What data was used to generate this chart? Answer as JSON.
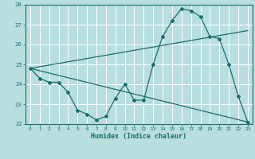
{
  "xlabel": "Humidex (Indice chaleur)",
  "xlim": [
    -0.5,
    23.5
  ],
  "ylim": [
    22,
    28
  ],
  "yticks": [
    22,
    23,
    24,
    25,
    26,
    27,
    28
  ],
  "xticks": [
    0,
    1,
    2,
    3,
    4,
    5,
    6,
    7,
    8,
    9,
    10,
    11,
    12,
    13,
    14,
    15,
    16,
    17,
    18,
    19,
    20,
    21,
    22,
    23
  ],
  "bg_color": "#b8dede",
  "line_color": "#1a6e6a",
  "grid_color": "#ffffff",
  "line1_x": [
    0,
    1,
    2,
    3,
    4,
    5,
    6,
    7,
    8,
    9,
    10,
    11,
    12,
    13,
    14,
    15,
    16,
    17,
    18,
    19,
    20,
    21,
    22,
    23
  ],
  "line1_y": [
    24.8,
    24.3,
    24.1,
    24.1,
    23.6,
    22.7,
    22.5,
    22.2,
    22.4,
    23.3,
    24.0,
    23.2,
    23.2,
    25.0,
    26.4,
    27.2,
    27.8,
    27.7,
    27.4,
    26.4,
    26.3,
    25.0,
    23.4,
    22.1
  ],
  "line2_x": [
    0,
    23
  ],
  "line2_y": [
    24.8,
    26.7
  ],
  "line3_x": [
    0,
    23
  ],
  "line3_y": [
    24.8,
    22.1
  ],
  "marker": "D",
  "marker_size": 2.0,
  "linewidth": 0.9
}
